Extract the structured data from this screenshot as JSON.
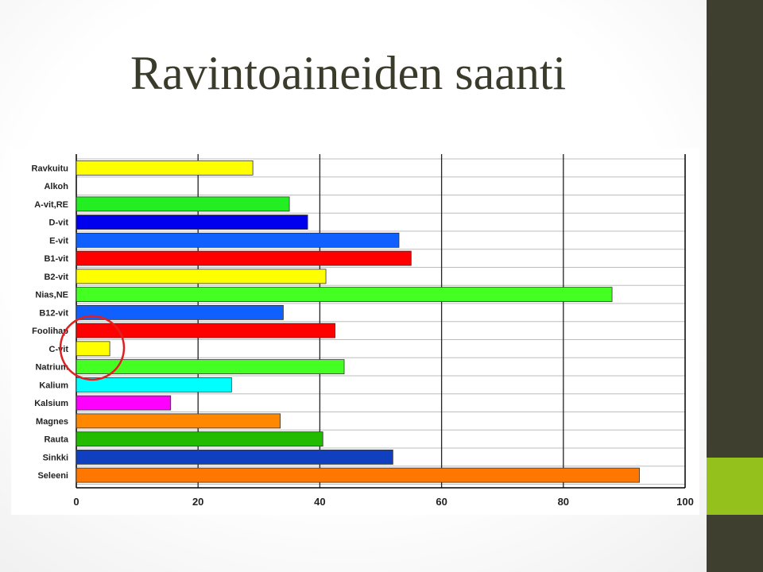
{
  "slide": {
    "title": "Ravintoaineiden saanti",
    "colors": {
      "side_panel": "#3f3f30",
      "side_accent": "#94c11c",
      "title": "#3b3b2c",
      "highlight_circle": "#e02020"
    }
  },
  "chart_data": {
    "type": "bar",
    "orientation": "horizontal",
    "title": "",
    "xlabel": "",
    "ylabel": "",
    "xlim": [
      0,
      100
    ],
    "x_ticks": [
      0,
      20,
      40,
      60,
      80,
      100
    ],
    "grid": true,
    "categories": [
      "Ravkuitu",
      "Alkoh",
      "A-vit,RE",
      "D-vit",
      "E-vit",
      "B1-vit",
      "B2-vit",
      "Nias,NE",
      "B12-vit",
      "Foolihap",
      "C-vit",
      "Natrium",
      "Kalium",
      "Kalsium",
      "Magnes",
      "Rauta",
      "Sinkki",
      "Seleeni"
    ],
    "values": [
      29,
      0,
      35,
      38,
      53,
      55,
      41,
      88,
      34,
      42.5,
      5.5,
      44,
      25.5,
      15.5,
      33.5,
      40.5,
      52,
      92.5
    ],
    "bar_colors": [
      "#ffff00",
      "#ffff00",
      "#22ee22",
      "#0000ee",
      "#1060ff",
      "#ff0000",
      "#ffff00",
      "#44ff22",
      "#1060ff",
      "#ff0000",
      "#ffff00",
      "#44ff22",
      "#00ffff",
      "#ff00ff",
      "#ff8800",
      "#22bb00",
      "#1040c0",
      "#ff7700"
    ],
    "highlighted_category": "C-vit"
  }
}
